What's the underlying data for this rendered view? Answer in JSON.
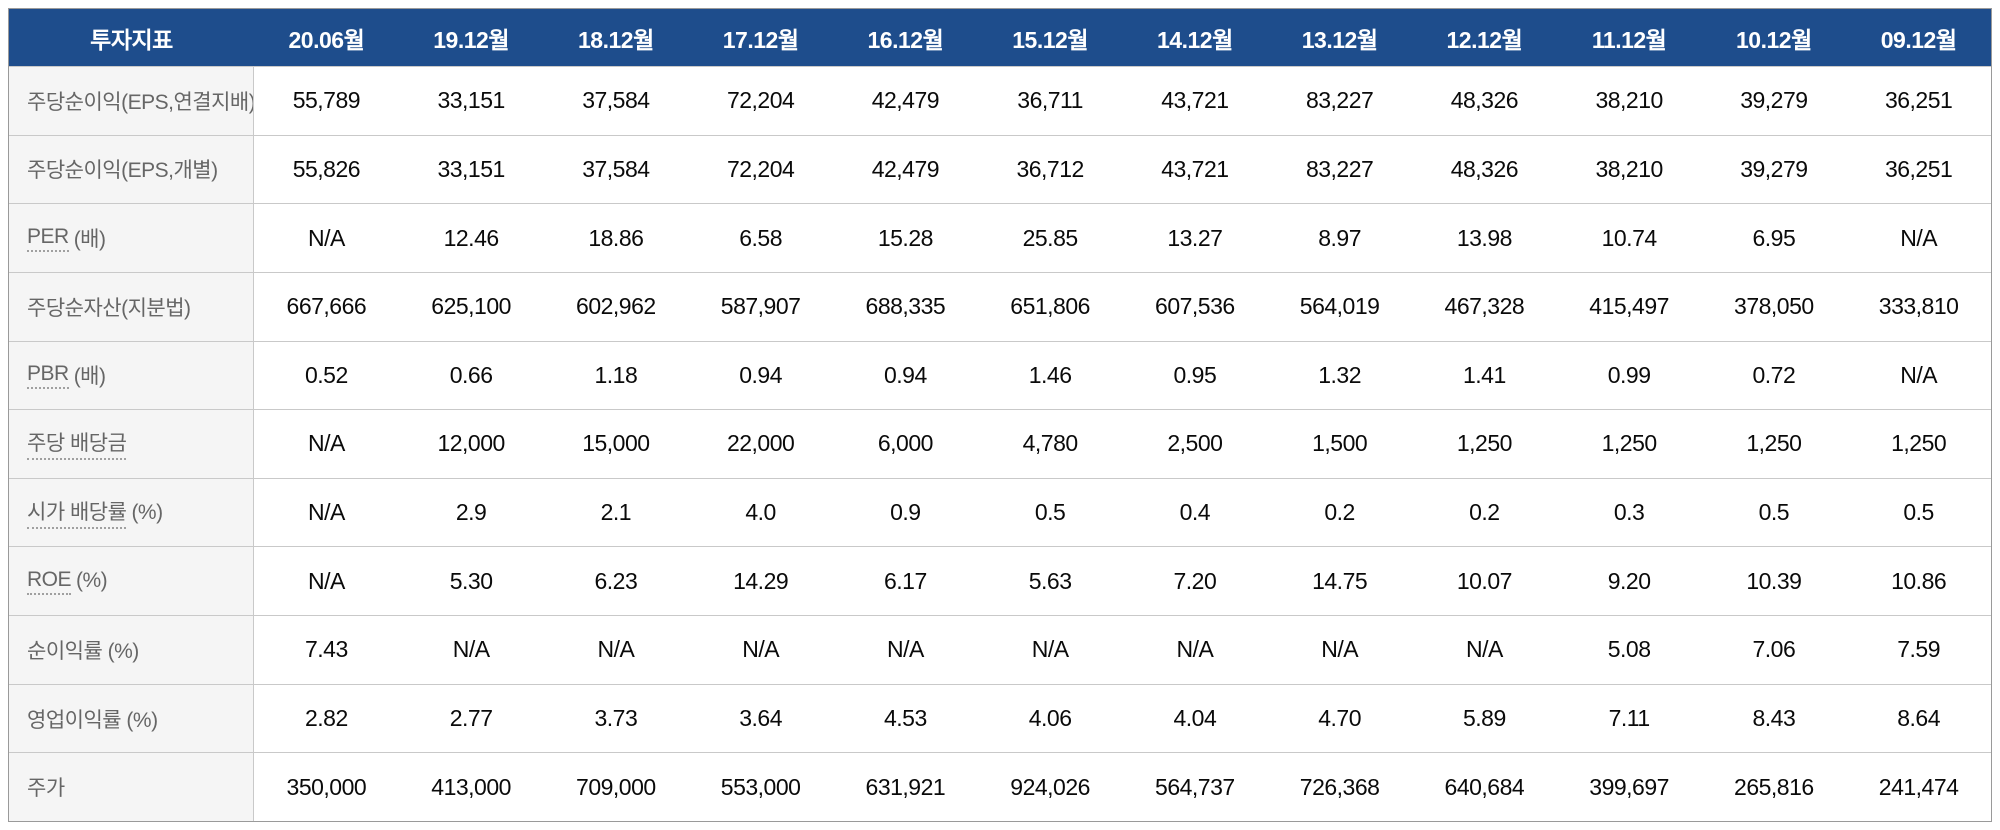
{
  "colors": {
    "header_bg": "#1e4d8c",
    "header_text": "#ffffff",
    "label_bg": "#f5f5f5",
    "label_text": "#666666",
    "value_text": "#0a0a0a",
    "row_border": "#c9c9c9",
    "outer_border": "#9a9a9a"
  },
  "table": {
    "header": {
      "label": "투자지표",
      "columns": [
        "20.06월",
        "19.12월",
        "18.12월",
        "17.12월",
        "16.12월",
        "15.12월",
        "14.12월",
        "13.12월",
        "12.12월",
        "11.12월",
        "10.12월",
        "09.12월"
      ]
    },
    "rows": [
      {
        "key": "eps-consolidated",
        "term": "주당순이익(EPS,연결지배)",
        "suffix": "",
        "tooltip": false,
        "values": [
          "55,789",
          "33,151",
          "37,584",
          "72,204",
          "42,479",
          "36,711",
          "43,721",
          "83,227",
          "48,326",
          "38,210",
          "39,279",
          "36,251"
        ]
      },
      {
        "key": "eps-individual",
        "term": "주당순이익(EPS,개별)",
        "suffix": "",
        "tooltip": false,
        "values": [
          "55,826",
          "33,151",
          "37,584",
          "72,204",
          "42,479",
          "36,712",
          "43,721",
          "83,227",
          "48,326",
          "38,210",
          "39,279",
          "36,251"
        ]
      },
      {
        "key": "per",
        "term": "PER",
        "suffix": "(배)",
        "tooltip": true,
        "values": [
          "N/A",
          "12.46",
          "18.86",
          "6.58",
          "15.28",
          "25.85",
          "13.27",
          "8.97",
          "13.98",
          "10.74",
          "6.95",
          "N/A"
        ]
      },
      {
        "key": "bps",
        "term": "주당순자산(지분법)",
        "suffix": "",
        "tooltip": false,
        "values": [
          "667,666",
          "625,100",
          "602,962",
          "587,907",
          "688,335",
          "651,806",
          "607,536",
          "564,019",
          "467,328",
          "415,497",
          "378,050",
          "333,810"
        ]
      },
      {
        "key": "pbr",
        "term": "PBR",
        "suffix": "(배)",
        "tooltip": true,
        "values": [
          "0.52",
          "0.66",
          "1.18",
          "0.94",
          "0.94",
          "1.46",
          "0.95",
          "1.32",
          "1.41",
          "0.99",
          "0.72",
          "N/A"
        ]
      },
      {
        "key": "dps",
        "term": "주당 배당금",
        "suffix": "",
        "tooltip": true,
        "values": [
          "N/A",
          "12,000",
          "15,000",
          "22,000",
          "6,000",
          "4,780",
          "2,500",
          "1,500",
          "1,250",
          "1,250",
          "1,250",
          "1,250"
        ]
      },
      {
        "key": "dividend-yield",
        "term": "시가 배당률",
        "suffix": "(%)",
        "tooltip": true,
        "values": [
          "N/A",
          "2.9",
          "2.1",
          "4.0",
          "0.9",
          "0.5",
          "0.4",
          "0.2",
          "0.2",
          "0.3",
          "0.5",
          "0.5"
        ]
      },
      {
        "key": "roe",
        "term": "ROE",
        "suffix": "(%)",
        "tooltip": true,
        "values": [
          "N/A",
          "5.30",
          "6.23",
          "14.29",
          "6.17",
          "5.63",
          "7.20",
          "14.75",
          "10.07",
          "9.20",
          "10.39",
          "10.86"
        ]
      },
      {
        "key": "net-margin",
        "term": "순이익률 (%)",
        "suffix": "",
        "tooltip": false,
        "values": [
          "7.43",
          "N/A",
          "N/A",
          "N/A",
          "N/A",
          "N/A",
          "N/A",
          "N/A",
          "N/A",
          "5.08",
          "7.06",
          "7.59"
        ]
      },
      {
        "key": "operating-margin",
        "term": "영업이익률 (%)",
        "suffix": "",
        "tooltip": false,
        "values": [
          "2.82",
          "2.77",
          "3.73",
          "3.64",
          "4.53",
          "4.06",
          "4.04",
          "4.70",
          "5.89",
          "7.11",
          "8.43",
          "8.64"
        ]
      },
      {
        "key": "stock-price",
        "term": "주가",
        "suffix": "",
        "tooltip": false,
        "values": [
          "350,000",
          "413,000",
          "709,000",
          "553,000",
          "631,921",
          "924,026",
          "564,737",
          "726,368",
          "640,684",
          "399,697",
          "265,816",
          "241,474"
        ]
      }
    ]
  }
}
